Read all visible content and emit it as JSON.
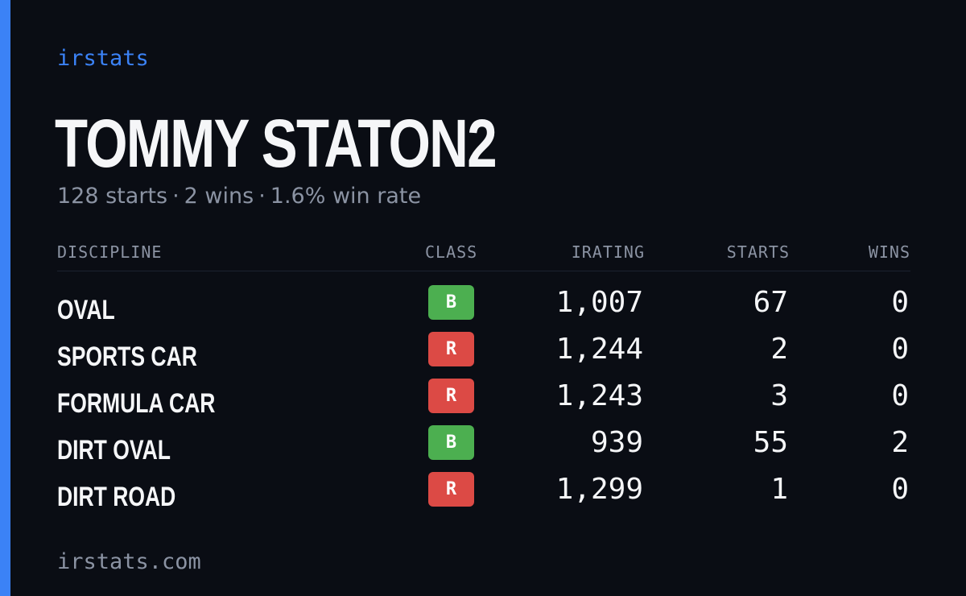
{
  "brand": "irstats",
  "driver": {
    "name": "TOMMY STATON2",
    "starts_text": "128 starts",
    "wins_text": "2 wins",
    "win_rate_text": "1.6% win rate"
  },
  "table": {
    "headers": {
      "discipline": "DISCIPLINE",
      "class": "CLASS",
      "irating": "IRATING",
      "starts": "STARTS",
      "wins": "WINS"
    },
    "rows": [
      {
        "discipline": "OVAL",
        "class": "B",
        "class_color": "#4caf50",
        "irating": "1,007",
        "starts": "67",
        "wins": "0"
      },
      {
        "discipline": "SPORTS CAR",
        "class": "R",
        "class_color": "#dc4a45",
        "irating": "1,244",
        "starts": "2",
        "wins": "0"
      },
      {
        "discipline": "FORMULA CAR",
        "class": "R",
        "class_color": "#dc4a45",
        "irating": "1,243",
        "starts": "3",
        "wins": "0"
      },
      {
        "discipline": "DIRT OVAL",
        "class": "B",
        "class_color": "#4caf50",
        "irating": "939",
        "starts": "55",
        "wins": "2"
      },
      {
        "discipline": "DIRT ROAD",
        "class": "R",
        "class_color": "#dc4a45",
        "irating": "1,299",
        "starts": "1",
        "wins": "0"
      }
    ]
  },
  "footer": "irstats.com",
  "colors": {
    "background": "#0a0d14",
    "accent": "#3b82f6",
    "text_primary": "#f5f6f8",
    "text_muted": "#8b93a3",
    "class_b": "#4caf50",
    "class_r": "#dc4a45"
  }
}
